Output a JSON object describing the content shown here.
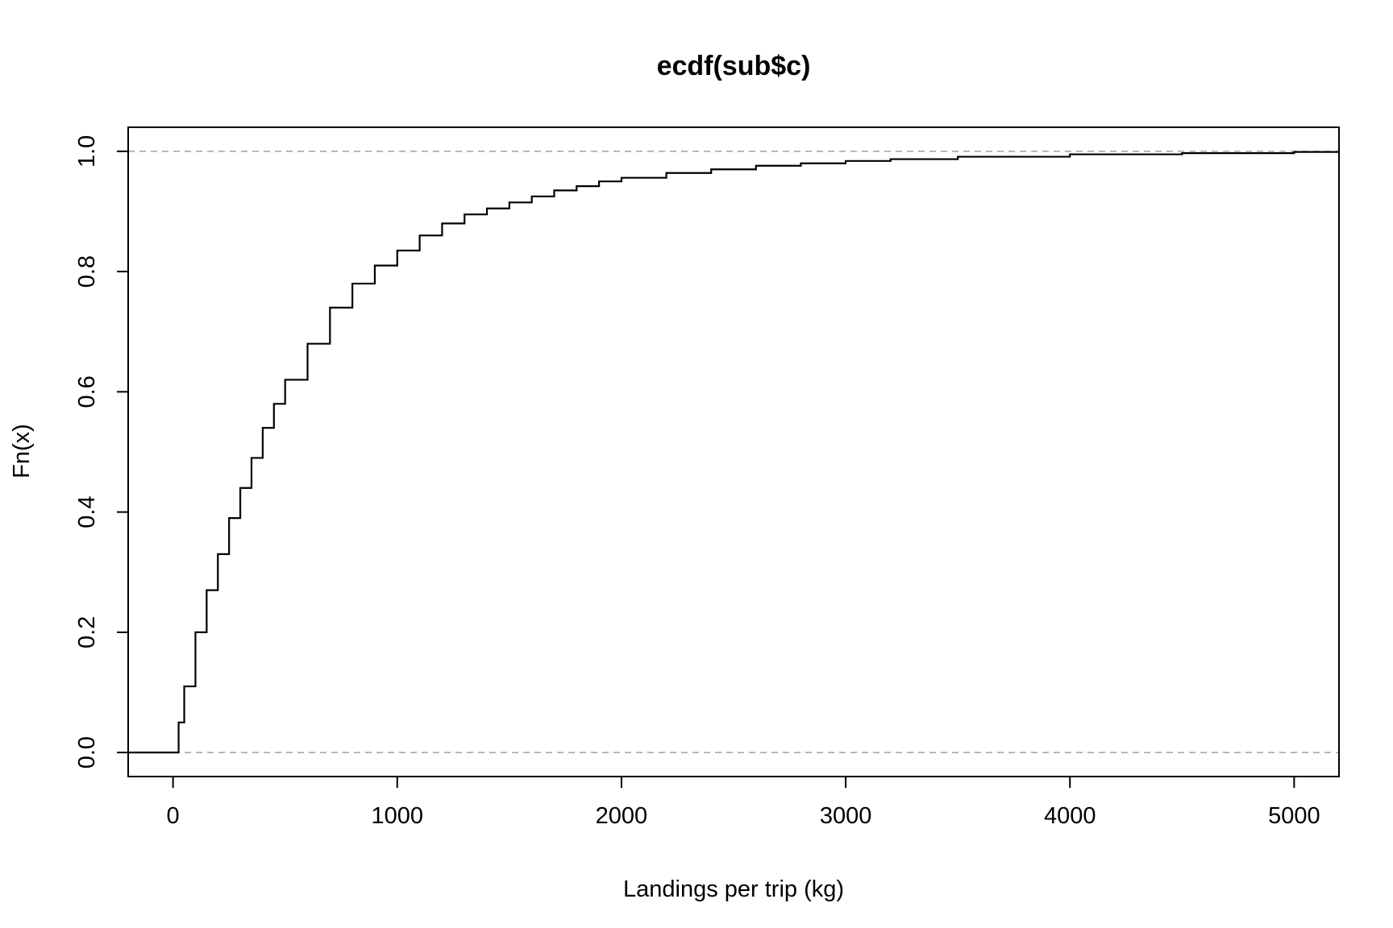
{
  "chart_data": {
    "type": "line",
    "subtype": "ecdf-step",
    "title": "ecdf(sub$c)",
    "xlabel": "Landings per trip (kg)",
    "ylabel": "Fn(x)",
    "xlim": [
      -200,
      5200
    ],
    "ylim": [
      -0.04,
      1.04
    ],
    "x_ticks": [
      0,
      1000,
      2000,
      3000,
      4000,
      5000
    ],
    "x_tick_labels": [
      "0",
      "1000",
      "2000",
      "3000",
      "4000",
      "5000"
    ],
    "y_ticks": [
      0.0,
      0.2,
      0.4,
      0.6,
      0.8,
      1.0
    ],
    "y_tick_labels": [
      "0.0",
      "0.2",
      "0.4",
      "0.6",
      "0.8",
      "1.0"
    ],
    "reference_lines": [
      0.0,
      1.0
    ],
    "grid": false,
    "legend": "none",
    "colors": {
      "line": "#000000",
      "reference": "#a8a8a8",
      "frame": "#000000"
    },
    "series": [
      {
        "x": [
          -200,
          0,
          25,
          50,
          100,
          150,
          200,
          250,
          300,
          350,
          400,
          450,
          500,
          600,
          700,
          800,
          900,
          1000,
          1100,
          1200,
          1300,
          1400,
          1500,
          1600,
          1700,
          1800,
          1900,
          2000,
          2200,
          2400,
          2600,
          2800,
          3000,
          3200,
          3500,
          4000,
          4500,
          5000,
          5200
        ],
        "y": [
          0.0,
          0.0,
          0.05,
          0.11,
          0.2,
          0.27,
          0.33,
          0.39,
          0.44,
          0.49,
          0.54,
          0.58,
          0.62,
          0.68,
          0.74,
          0.78,
          0.81,
          0.835,
          0.86,
          0.88,
          0.895,
          0.905,
          0.915,
          0.925,
          0.935,
          0.942,
          0.95,
          0.956,
          0.964,
          0.97,
          0.976,
          0.98,
          0.984,
          0.987,
          0.991,
          0.995,
          0.997,
          0.999,
          0.999
        ]
      }
    ]
  }
}
